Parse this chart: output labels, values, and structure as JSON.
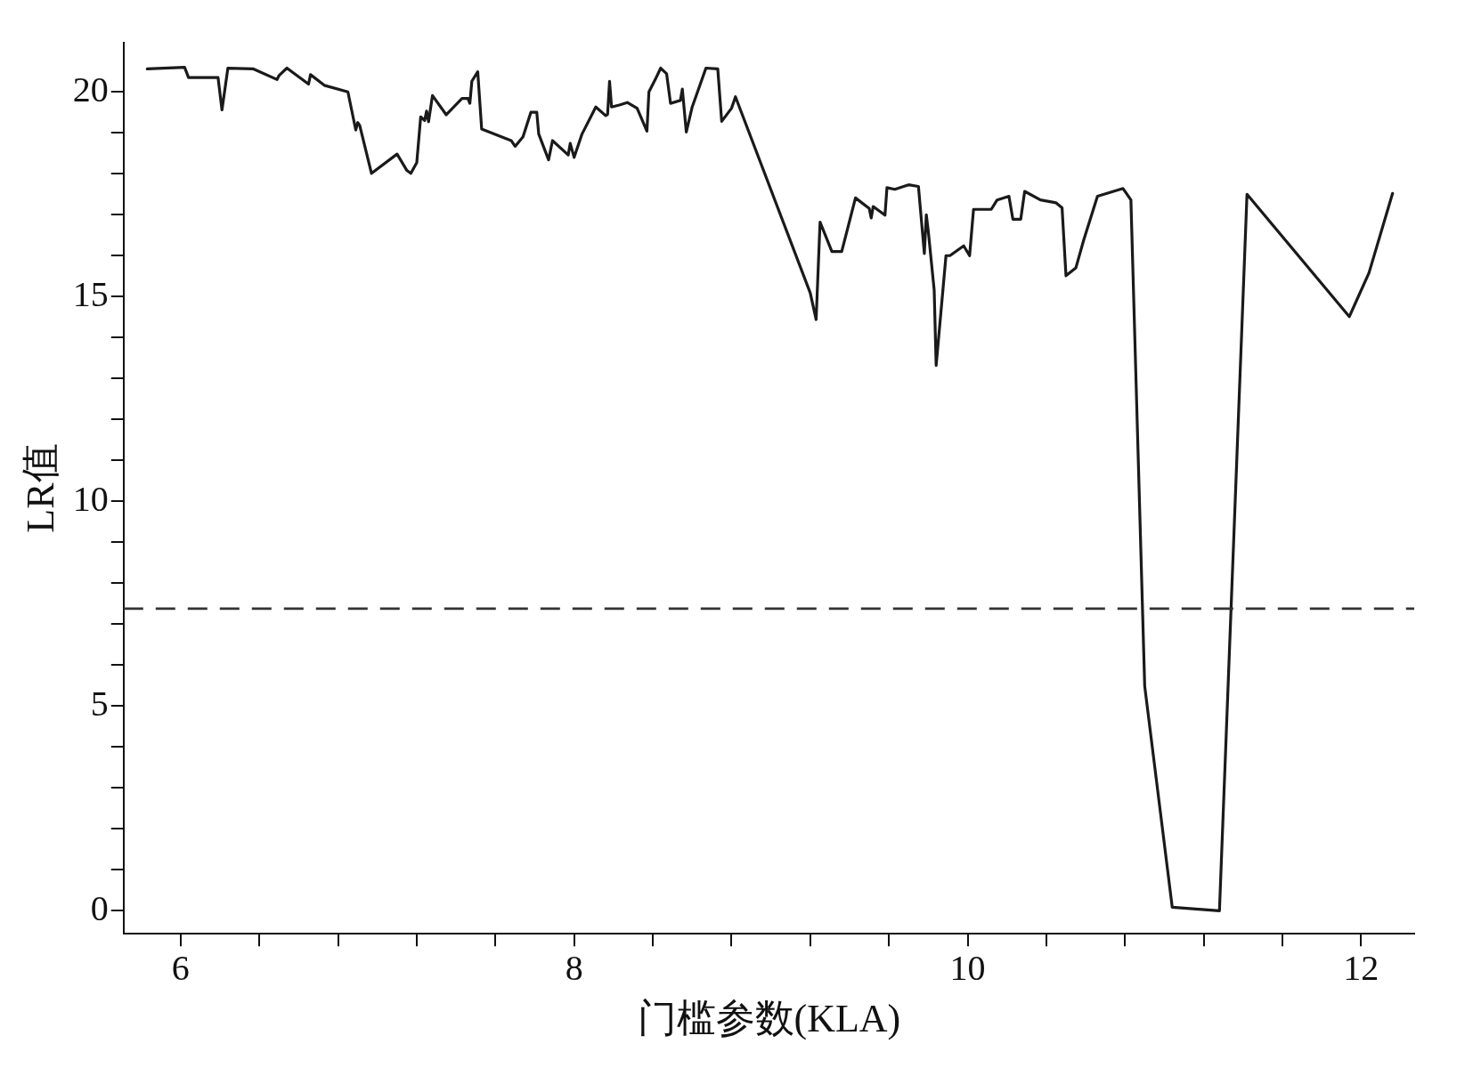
{
  "chart_data": {
    "type": "line",
    "xlabel": "门槛参数(KLA)",
    "ylabel": "LR值",
    "x": [
      5.83,
      6.02,
      6.04,
      6.19,
      6.21,
      6.24,
      6.37,
      6.49,
      6.5,
      6.54,
      6.65,
      6.66,
      6.73,
      6.85,
      6.89,
      6.9,
      6.91,
      6.97,
      7.1,
      7.15,
      7.17,
      7.2,
      7.22,
      7.24,
      7.25,
      7.26,
      7.28,
      7.35,
      7.43,
      7.46,
      7.47,
      7.48,
      7.51,
      7.53,
      7.68,
      7.7,
      7.74,
      7.78,
      7.81,
      7.82,
      7.87,
      7.89,
      7.97,
      7.98,
      8.0,
      8.04,
      8.11,
      8.16,
      8.17,
      8.18,
      8.19,
      8.23,
      8.27,
      8.32,
      8.37,
      8.38,
      8.41,
      8.44,
      8.47,
      8.49,
      8.54,
      8.55,
      8.57,
      8.6,
      8.67,
      8.73,
      8.75,
      8.8,
      8.82,
      9.2,
      9.23,
      9.25,
      9.31,
      9.36,
      9.43,
      9.5,
      9.51,
      9.52,
      9.58,
      9.59,
      9.63,
      9.7,
      9.75,
      9.78,
      9.79,
      9.8,
      9.83,
      9.84,
      9.89,
      9.91,
      9.98,
      10.01,
      10.03,
      10.12,
      10.15,
      10.21,
      10.23,
      10.27,
      10.29,
      10.37,
      10.45,
      10.48,
      10.5,
      10.55,
      10.59,
      10.66,
      10.79,
      10.83,
      10.9,
      11.04,
      11.28,
      11.42,
      11.94,
      12.04,
      12.16
    ],
    "series": [
      {
        "color": "#1a1a1a",
        "values": [
          20.56,
          20.6,
          20.35,
          20.35,
          19.56,
          20.58,
          20.56,
          20.3,
          20.4,
          20.58,
          20.19,
          20.42,
          20.16,
          20.0,
          19.07,
          19.25,
          19.18,
          18.01,
          18.48,
          18.08,
          18.01,
          18.27,
          19.39,
          19.3,
          19.53,
          19.27,
          19.91,
          19.44,
          19.84,
          19.84,
          19.72,
          20.26,
          20.49,
          19.09,
          18.81,
          18.67,
          18.9,
          19.5,
          19.5,
          18.97,
          18.34,
          18.81,
          18.46,
          18.74,
          18.4,
          18.97,
          19.63,
          19.42,
          19.45,
          20.26,
          19.63,
          19.68,
          19.74,
          19.6,
          19.04,
          20.0,
          20.28,
          20.58,
          20.44,
          19.72,
          19.79,
          20.07,
          19.02,
          19.63,
          20.58,
          20.56,
          19.28,
          19.6,
          19.88,
          15.09,
          14.44,
          16.82,
          16.1,
          16.1,
          17.41,
          17.15,
          16.92,
          17.2,
          16.99,
          17.66,
          17.62,
          17.73,
          17.69,
          16.05,
          17.0,
          16.6,
          15.16,
          13.32,
          16.0,
          16.0,
          16.24,
          16.0,
          17.13,
          17.13,
          17.36,
          17.45,
          16.89,
          16.89,
          17.57,
          17.36,
          17.29,
          17.17,
          15.51,
          15.7,
          16.38,
          17.45,
          17.64,
          17.36,
          5.49,
          0.09,
          0.0,
          17.5,
          14.51,
          15.58,
          17.52
        ]
      }
    ],
    "xlim": [
      5.71,
      12.27
    ],
    "ylim": [
      -0.56,
      21.2
    ],
    "xticks": [
      6,
      {
        "value": 6.4,
        "label": null
      },
      {
        "value": 6.8,
        "label": null
      },
      {
        "value": 7.2,
        "label": null
      },
      {
        "value": 7.6,
        "label": null
      },
      8,
      {
        "value": 8.4,
        "label": null
      },
      {
        "value": 8.8,
        "label": null
      },
      {
        "value": 9.2,
        "label": null
      },
      {
        "value": 9.6,
        "label": null
      },
      10,
      {
        "value": 10.4,
        "label": null
      },
      {
        "value": 10.8,
        "label": null
      },
      {
        "value": 11.2,
        "label": null
      },
      {
        "value": 11.6,
        "label": null
      },
      12
    ],
    "yticks": [
      0,
      {
        "value": 1,
        "label": null
      },
      {
        "value": 2,
        "label": null
      },
      {
        "value": 3,
        "label": null
      },
      {
        "value": 4,
        "label": null
      },
      5,
      {
        "value": 6,
        "label": null
      },
      {
        "value": 7,
        "label": null
      },
      {
        "value": 8,
        "label": null
      },
      {
        "value": 9,
        "label": null
      },
      10,
      {
        "value": 11,
        "label": null
      },
      {
        "value": 12,
        "label": null
      },
      {
        "value": 13,
        "label": null
      },
      {
        "value": 14,
        "label": null
      },
      15,
      {
        "value": 16,
        "label": null
      },
      {
        "value": 17,
        "label": null
      },
      {
        "value": 18,
        "label": null
      },
      {
        "value": 19,
        "label": null
      },
      20
    ],
    "ref_lines": [
      {
        "axis": "y",
        "value": 7.38,
        "color": "#333333",
        "line_style": "dashed"
      }
    ],
    "grid": false,
    "legend": false,
    "marker": "none",
    "line_style": "solid"
  }
}
